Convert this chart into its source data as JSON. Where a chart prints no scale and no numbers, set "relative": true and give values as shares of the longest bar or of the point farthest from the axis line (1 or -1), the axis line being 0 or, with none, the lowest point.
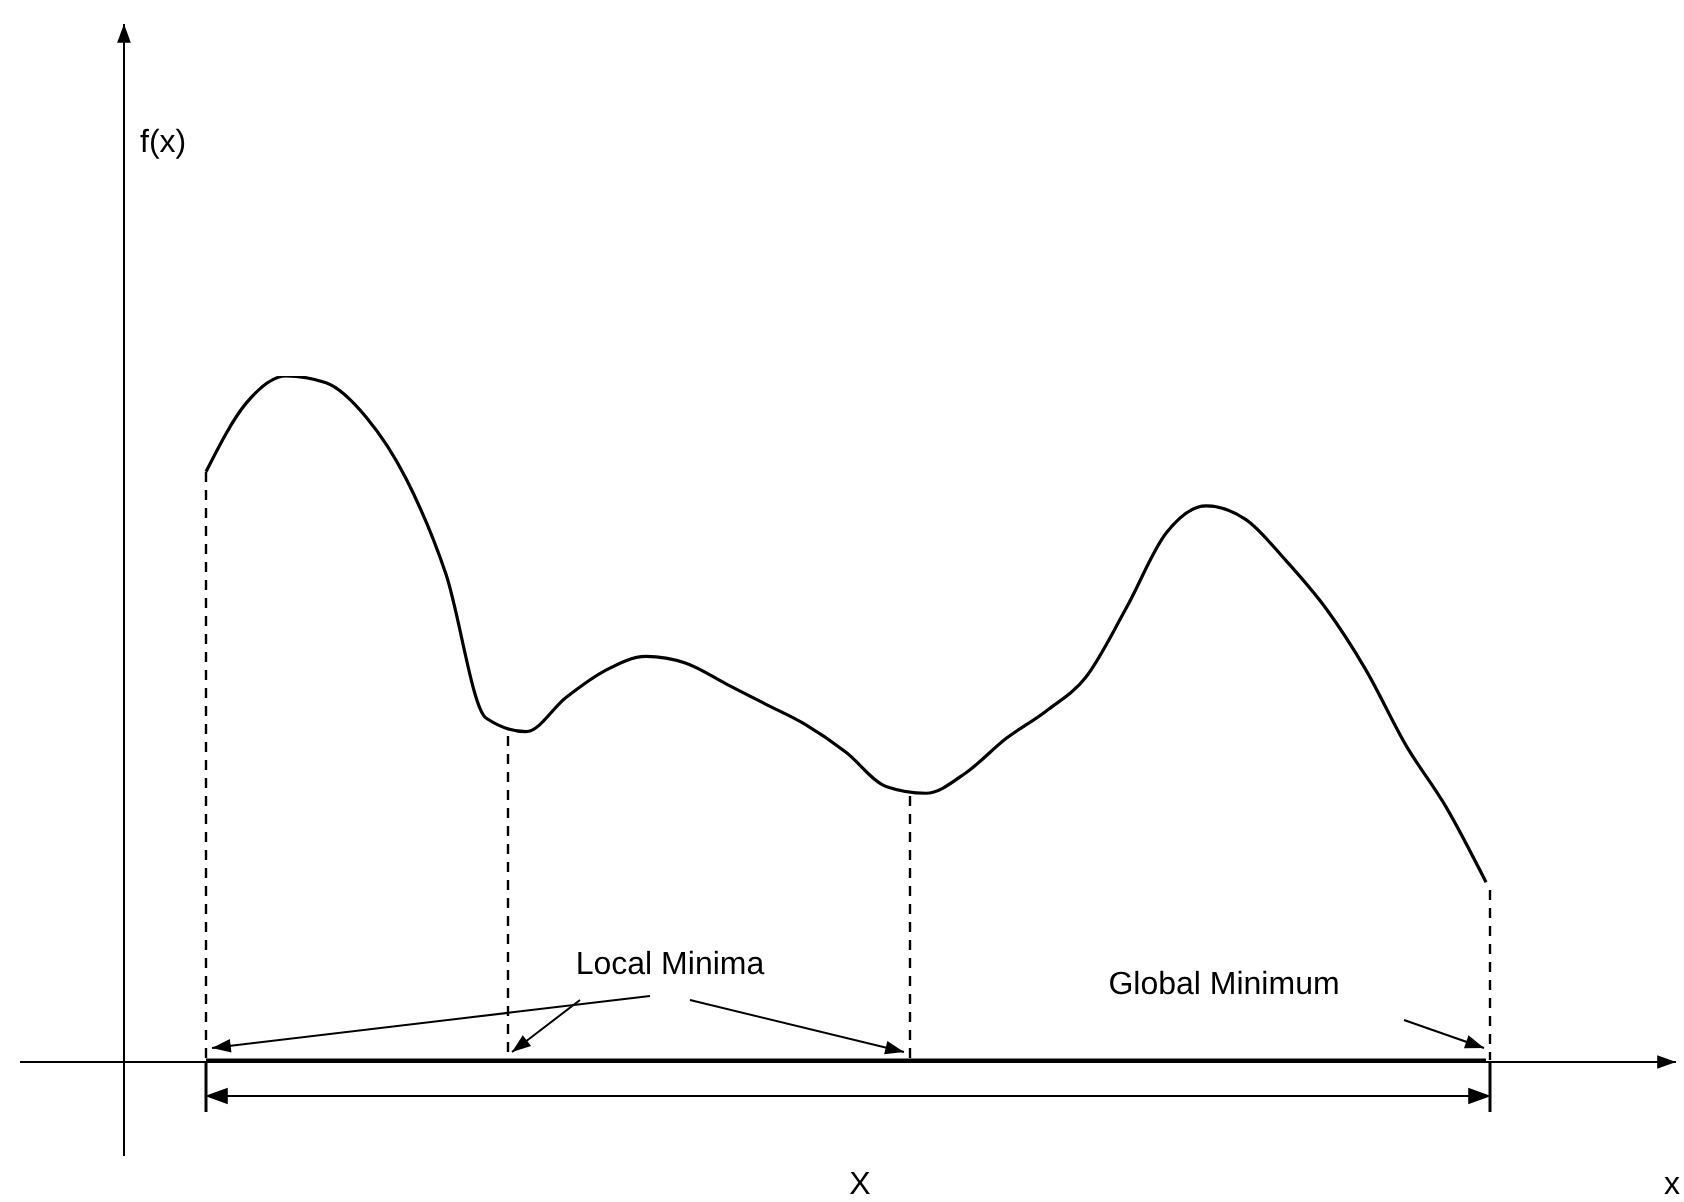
{
  "chart_data": {
    "type": "line",
    "relative": true,
    "annotations": [
      "Local Minima",
      "Global Minimum",
      "X",
      "f(x)",
      "x"
    ],
    "categories": [
      null,
      null,
      null,
      null,
      null,
      null,
      null,
      null,
      null,
      null,
      null,
      null,
      null,
      null,
      null,
      null,
      null,
      null,
      null,
      null,
      null,
      null,
      null,
      null,
      null,
      null,
      null,
      null,
      null,
      null,
      null,
      null,
      null
    ],
    "series": [
      {
        "color": "#000000",
        "values": [
          0.86,
          0.96,
          1.0,
          0.99,
          0.94,
          0.85,
          0.71,
          0.5,
          0.48,
          0.53,
          0.57,
          0.59,
          0.58,
          0.55,
          0.52,
          0.49,
          0.45,
          0.4,
          0.39,
          0.42,
          0.47,
          0.51,
          0.56,
          0.66,
          0.77,
          0.81,
          0.79,
          0.73,
          0.66,
          0.57,
          0.46,
          0.37,
          0.26
        ]
      }
    ],
    "marker": "none",
    "line_style": "solid"
  }
}
